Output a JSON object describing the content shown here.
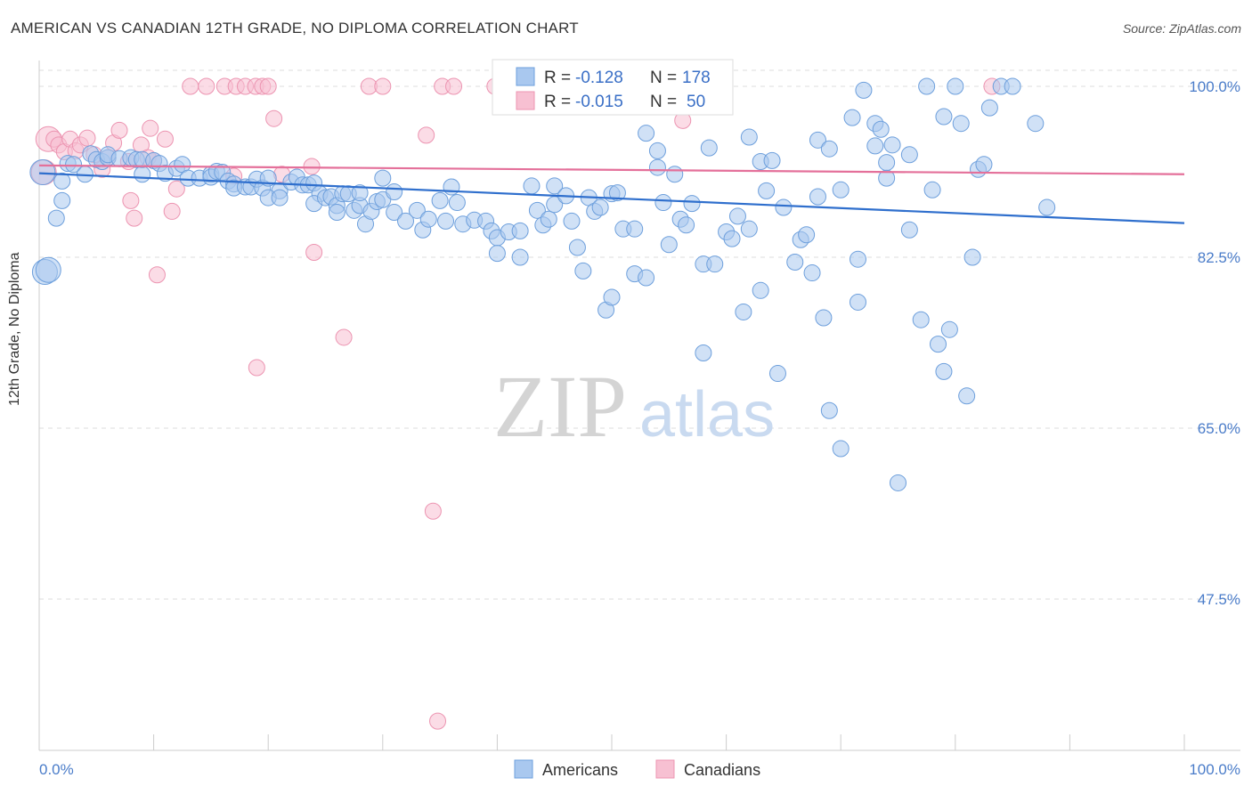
{
  "header": {
    "title": "AMERICAN VS CANADIAN 12TH GRADE, NO DIPLOMA CORRELATION CHART",
    "source": "Source: ZipAtlas.com"
  },
  "watermark": {
    "zip": "ZIP",
    "atlas": "atlas"
  },
  "colors": {
    "americans_fill": "#a9c8ef",
    "americans_stroke": "#6d9fdc",
    "americans_line": "#2f6fcd",
    "canadians_fill": "#f7c0d2",
    "canadians_stroke": "#ec94b1",
    "canadians_line": "#e4709a",
    "tick": "#4a7cc9",
    "grid": "#dddddd"
  },
  "legend": {
    "americans": {
      "r_label": "R =",
      "r_value": "-0.128",
      "n_label": "N =",
      "n_value": "178"
    },
    "canadians": {
      "r_label": "R =",
      "r_value": "-0.015",
      "n_label": "N =",
      "n_value": "50"
    }
  },
  "chart_data": {
    "type": "scatter",
    "ylabel": "12th Grade, No Diploma",
    "xlim": [
      0,
      100
    ],
    "ylim": [
      30,
      101
    ],
    "x_tick_labels": [
      "0.0%",
      "100.0%"
    ],
    "y_ticks": [
      {
        "value": 100,
        "label": "100.0%"
      },
      {
        "value": 82.5,
        "label": "82.5%"
      },
      {
        "value": 65,
        "label": "65.0%"
      },
      {
        "value": 47.5,
        "label": "47.5%"
      }
    ],
    "grid": "horizontal dashed",
    "series": [
      {
        "name": "Americans",
        "trend": {
          "x": [
            0,
            100
          ],
          "y": [
            91.1,
            86.0
          ]
        },
        "points": [
          [
            0.5,
            81.0
          ],
          [
            0.8,
            81.2
          ],
          [
            1.5,
            86.5
          ],
          [
            2,
            90.3
          ],
          [
            2,
            88.3
          ],
          [
            2.5,
            92.1
          ],
          [
            3,
            92.0
          ],
          [
            4,
            91.0
          ],
          [
            4.5,
            93.1
          ],
          [
            5,
            92.5
          ],
          [
            5.5,
            92.3
          ],
          [
            6,
            92.7
          ],
          [
            6,
            93.0
          ],
          [
            7,
            92.6
          ],
          [
            8,
            92.7
          ],
          [
            8.5,
            92.5
          ],
          [
            9,
            91.0
          ],
          [
            9,
            92.5
          ],
          [
            10,
            92.4
          ],
          [
            10.5,
            92.1
          ],
          [
            11,
            91.1
          ],
          [
            12,
            91.6
          ],
          [
            12.5,
            92.0
          ],
          [
            13,
            90.6
          ],
          [
            14,
            90.6
          ],
          [
            15,
            91.0
          ],
          [
            15,
            90.7
          ],
          [
            15.5,
            91.3
          ],
          [
            16,
            91.2
          ],
          [
            16.5,
            90.3
          ],
          [
            17,
            90.0
          ],
          [
            17,
            89.6
          ],
          [
            18,
            89.7
          ],
          [
            18.5,
            89.7
          ],
          [
            19,
            90.5
          ],
          [
            19.5,
            89.6
          ],
          [
            20,
            90.6
          ],
          [
            21,
            89.3
          ],
          [
            20,
            88.6
          ],
          [
            21,
            88.6
          ],
          [
            22,
            90.2
          ],
          [
            22.5,
            90.7
          ],
          [
            23,
            89.9
          ],
          [
            23.5,
            89.9
          ],
          [
            24,
            90.1
          ],
          [
            24.5,
            89.0
          ],
          [
            24,
            88.0
          ],
          [
            25,
            88.6
          ],
          [
            25.5,
            88.7
          ],
          [
            26,
            87.8
          ],
          [
            26,
            87.1
          ],
          [
            26.5,
            89.0
          ],
          [
            27,
            89.0
          ],
          [
            27.5,
            87.3
          ],
          [
            28,
            87.8
          ],
          [
            28,
            89.1
          ],
          [
            28.5,
            85.9
          ],
          [
            29,
            87.2
          ],
          [
            29.5,
            88.2
          ],
          [
            30,
            90.6
          ],
          [
            30,
            88.4
          ],
          [
            31,
            87.1
          ],
          [
            31,
            89.2
          ],
          [
            32,
            86.2
          ],
          [
            33,
            87.3
          ],
          [
            33.5,
            85.3
          ],
          [
            34,
            86.4
          ],
          [
            35,
            88.3
          ],
          [
            35.5,
            86.2
          ],
          [
            36,
            89.7
          ],
          [
            36.5,
            88.1
          ],
          [
            37,
            85.9
          ],
          [
            38,
            86.3
          ],
          [
            39,
            86.2
          ],
          [
            39.5,
            85.2
          ],
          [
            40,
            84.5
          ],
          [
            40,
            82.9
          ],
          [
            41,
            85.1
          ],
          [
            42,
            82.5
          ],
          [
            42,
            85.2
          ],
          [
            43,
            89.8
          ],
          [
            43.5,
            87.3
          ],
          [
            44,
            85.8
          ],
          [
            44.5,
            86.4
          ],
          [
            45,
            87.9
          ],
          [
            45,
            89.8
          ],
          [
            46,
            88.8
          ],
          [
            46.5,
            86.2
          ],
          [
            47,
            83.5
          ],
          [
            47.5,
            81.1
          ],
          [
            48,
            88.6
          ],
          [
            48.5,
            87.2
          ],
          [
            49,
            87.6
          ],
          [
            49.5,
            77.1
          ],
          [
            50,
            78.4
          ],
          [
            50,
            89.0
          ],
          [
            50.5,
            89.1
          ],
          [
            51,
            85.4
          ],
          [
            52,
            80.8
          ],
          [
            52,
            85.4
          ],
          [
            53,
            80.4
          ],
          [
            53,
            95.2
          ],
          [
            54,
            93.4
          ],
          [
            54,
            91.7
          ],
          [
            54.5,
            88.1
          ],
          [
            55,
            83.8
          ],
          [
            55.5,
            91.0
          ],
          [
            56,
            86.4
          ],
          [
            56.5,
            85.8
          ],
          [
            57,
            88.0
          ],
          [
            58,
            72.7
          ],
          [
            58,
            81.8
          ],
          [
            58.5,
            93.7
          ],
          [
            59,
            81.8
          ],
          [
            60,
            85.1
          ],
          [
            60.5,
            84.4
          ],
          [
            61,
            86.7
          ],
          [
            61.5,
            76.9
          ],
          [
            62,
            94.8
          ],
          [
            62,
            85.4
          ],
          [
            63,
            79.1
          ],
          [
            63,
            92.3
          ],
          [
            63.5,
            89.3
          ],
          [
            64,
            92.4
          ],
          [
            64.5,
            70.6
          ],
          [
            65,
            87.6
          ],
          [
            66,
            82.0
          ],
          [
            66.5,
            84.3
          ],
          [
            67,
            84.8
          ],
          [
            67.5,
            80.9
          ],
          [
            68,
            94.5
          ],
          [
            68,
            88.7
          ],
          [
            68.5,
            76.3
          ],
          [
            69,
            66.8
          ],
          [
            69,
            93.6
          ],
          [
            70,
            62.9
          ],
          [
            70,
            89.4
          ],
          [
            71,
            96.8
          ],
          [
            71.5,
            82.3
          ],
          [
            71.5,
            77.9
          ],
          [
            72,
            99.6
          ],
          [
            73,
            96.2
          ],
          [
            73,
            93.9
          ],
          [
            73.5,
            95.6
          ],
          [
            74,
            90.6
          ],
          [
            74,
            92.2
          ],
          [
            74.5,
            94.0
          ],
          [
            75,
            59.4
          ],
          [
            76,
            85.3
          ],
          [
            76,
            93.0
          ],
          [
            77,
            76.1
          ],
          [
            77.5,
            100
          ],
          [
            78,
            89.4
          ],
          [
            78.5,
            73.6
          ],
          [
            79,
            96.9
          ],
          [
            79,
            70.8
          ],
          [
            79.5,
            75.1
          ],
          [
            80.5,
            96.2
          ],
          [
            80,
            100
          ],
          [
            81,
            68.3
          ],
          [
            81.5,
            82.5
          ],
          [
            82,
            91.5
          ],
          [
            82.5,
            92.0
          ],
          [
            83,
            97.8
          ],
          [
            84,
            100
          ],
          [
            85,
            100
          ],
          [
            87,
            96.2
          ],
          [
            88,
            87.6
          ],
          [
            0.3,
            91.2
          ]
        ]
      },
      {
        "name": "Canadians",
        "trend": {
          "x": [
            0,
            100
          ],
          "y": [
            91.9,
            91.0
          ]
        },
        "points": [
          [
            0.4,
            91.2
          ],
          [
            0.8,
            94.6
          ],
          [
            1.3,
            94.6
          ],
          [
            1.7,
            94.0
          ],
          [
            2.2,
            93.3
          ],
          [
            2.7,
            94.6
          ],
          [
            3.2,
            93.4
          ],
          [
            3.6,
            94.0
          ],
          [
            4.2,
            94.7
          ],
          [
            4.8,
            93.0
          ],
          [
            5.5,
            91.5
          ],
          [
            6,
            92.7
          ],
          [
            6.5,
            94.2
          ],
          [
            7,
            95.5
          ],
          [
            7.8,
            92.3
          ],
          [
            8,
            88.3
          ],
          [
            8.3,
            86.5
          ],
          [
            8.9,
            94.0
          ],
          [
            9.5,
            92.7
          ],
          [
            9.7,
            95.7
          ],
          [
            10,
            92.4
          ],
          [
            10.3,
            80.7
          ],
          [
            11,
            94.6
          ],
          [
            11.6,
            87.2
          ],
          [
            12,
            89.5
          ],
          [
            13.2,
            100
          ],
          [
            14.6,
            100
          ],
          [
            16.2,
            100
          ],
          [
            17,
            90.8
          ],
          [
            17.2,
            100
          ],
          [
            18,
            100
          ],
          [
            18.9,
            100
          ],
          [
            19,
            71.2
          ],
          [
            19.5,
            100
          ],
          [
            20,
            100
          ],
          [
            20.5,
            96.7
          ],
          [
            21.2,
            91.0
          ],
          [
            23.8,
            91.8
          ],
          [
            24,
            83.0
          ],
          [
            26.6,
            74.3
          ],
          [
            28.8,
            100
          ],
          [
            30,
            100
          ],
          [
            33.8,
            95.0
          ],
          [
            34.4,
            56.5
          ],
          [
            34.8,
            35.0
          ],
          [
            35.2,
            100
          ],
          [
            36.2,
            100
          ],
          [
            39.8,
            100
          ],
          [
            56.2,
            96.5
          ],
          [
            83.2,
            100
          ]
        ]
      }
    ],
    "bottom_legend": [
      "Americans",
      "Canadians"
    ]
  }
}
